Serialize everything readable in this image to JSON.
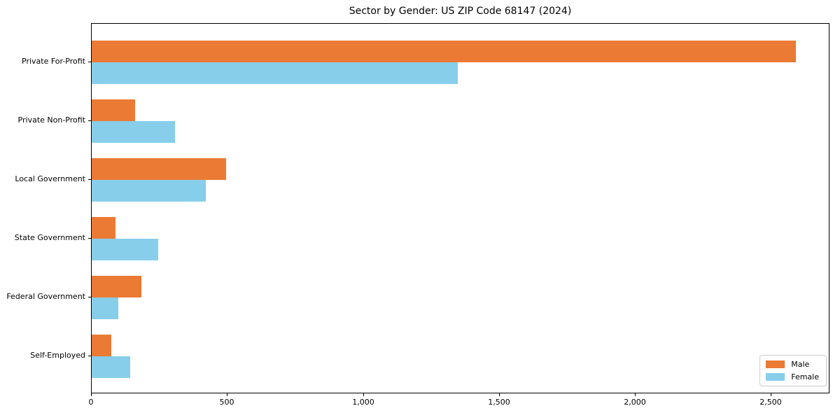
{
  "chart_data": {
    "type": "bar",
    "orientation": "horizontal",
    "title": "Sector by Gender: US ZIP Code 68147 (2024)",
    "categories": [
      "Private For-Profit",
      "Private Non-Profit",
      "Local Government",
      "State Government",
      "Federal Government",
      "Self-Employed"
    ],
    "series": [
      {
        "name": "Male",
        "color": "#EB7A34",
        "values": [
          2590,
          160,
          495,
          88,
          182,
          73
        ]
      },
      {
        "name": "Female",
        "color": "#87CEEB",
        "values": [
          1345,
          305,
          420,
          245,
          97,
          141
        ]
      }
    ],
    "xlabel": "",
    "ylabel": "",
    "xlim": [
      0,
      2715
    ],
    "xticks": [
      0,
      500,
      1000,
      1500,
      2000,
      2500
    ],
    "xtick_labels": [
      "0",
      "500",
      "1,000",
      "1,500",
      "2,000",
      "2,500"
    ],
    "legend_position": "lower right",
    "grid": false,
    "background_color": "#ffffff",
    "text_color": "#000000"
  }
}
